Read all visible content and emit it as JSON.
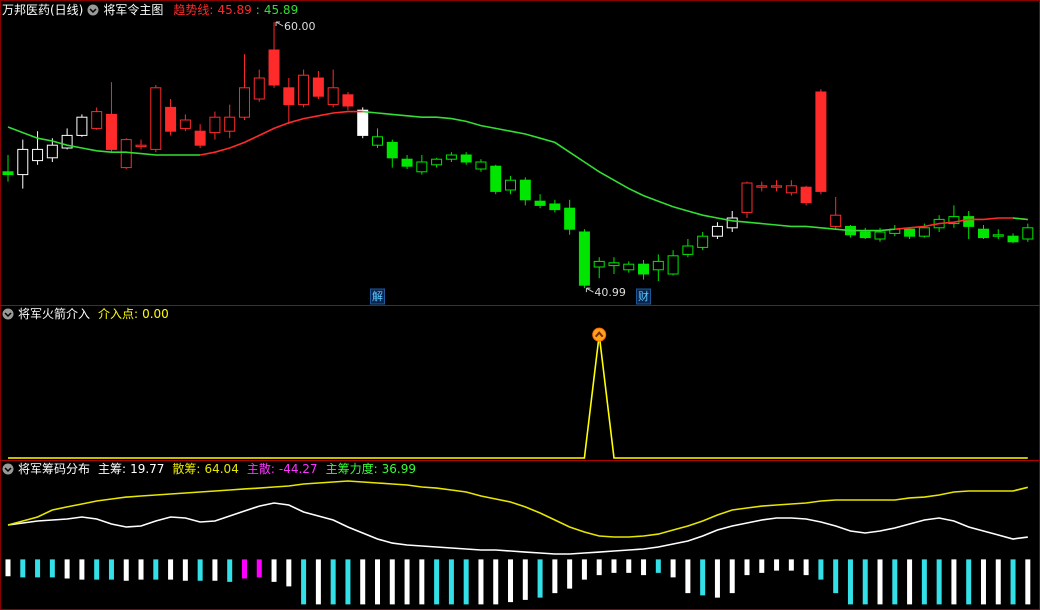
{
  "chart_data": [
    {
      "type": "candlestick",
      "title": "万邦医药(日线)",
      "subtitle": "将军令主图",
      "open": [
        49.3,
        49.1,
        50.1,
        50.3,
        51.0,
        51.9,
        52.4,
        53.4,
        49.6,
        51.1,
        50.9,
        53.9,
        52.4,
        52.2,
        52.1,
        52.2,
        53.2,
        54.5,
        58.0,
        55.3,
        54.1,
        56.0,
        54.1,
        54.8,
        53.7,
        51.2,
        51.4,
        50.2,
        49.3,
        49.8,
        50.2,
        50.5,
        49.5,
        49.7,
        48.0,
        48.7,
        47.2,
        47.0,
        46.7,
        45.0,
        42.5,
        42.6,
        42.3,
        42.7,
        42.3,
        42.0,
        43.4,
        43.9,
        44.7,
        45.3,
        46.4,
        48.2,
        48.2,
        47.8,
        48.2,
        55.0,
        45.4,
        45.4,
        45.0,
        44.5,
        44.9,
        45.2,
        44.7,
        45.3,
        45.6,
        46.1,
        45.2,
        44.7,
        44.7,
        44.5
      ],
      "high": [
        50.5,
        51.6,
        52.2,
        51.7,
        52.4,
        53.4,
        53.9,
        55.7,
        51.7,
        51.6,
        55.5,
        54.5,
        53.4,
        52.7,
        53.6,
        54.1,
        57.7,
        56.6,
        60.0,
        56.0,
        56.6,
        56.5,
        56.6,
        55.0,
        53.9,
        52.4,
        51.6,
        50.5,
        50.5,
        50.3,
        50.7,
        50.7,
        50.2,
        49.8,
        49.0,
        48.9,
        47.7,
        47.3,
        47.3,
        45.2,
        43.2,
        43.2,
        42.9,
        43.0,
        43.4,
        43.7,
        44.5,
        45.0,
        45.7,
        46.5,
        48.6,
        48.6,
        48.7,
        48.7,
        48.3,
        55.2,
        47.5,
        45.5,
        45.3,
        45.3,
        45.5,
        45.3,
        45.6,
        46.2,
        46.9,
        46.5,
        45.5,
        45.2,
        44.9,
        45.6
      ],
      "low": [
        48.6,
        48.1,
        49.8,
        50.0,
        50.9,
        51.8,
        52.3,
        50.7,
        49.5,
        50.9,
        50.7,
        51.9,
        52.2,
        51.0,
        51.6,
        51.7,
        53.0,
        54.3,
        55.3,
        52.7,
        53.9,
        54.5,
        53.9,
        53.7,
        51.7,
        51.0,
        49.6,
        49.5,
        49.1,
        49.6,
        50.0,
        49.8,
        49.3,
        47.7,
        47.7,
        46.9,
        46.7,
        46.4,
        44.8,
        40.99,
        41.7,
        42.0,
        42.1,
        41.6,
        41.5,
        41.9,
        43.2,
        43.7,
        44.5,
        45.0,
        46.0,
        47.9,
        47.9,
        47.6,
        46.9,
        47.7,
        45.2,
        44.6,
        44.5,
        44.3,
        44.7,
        44.5,
        44.6,
        45.0,
        45.3,
        44.5,
        44.5,
        44.5,
        44.2,
        44.3
      ],
      "close": [
        49.1,
        50.9,
        50.9,
        51.2,
        51.9,
        53.2,
        53.6,
        50.9,
        51.6,
        51.2,
        55.3,
        52.2,
        53.0,
        51.2,
        53.2,
        53.2,
        55.3,
        56.0,
        55.5,
        54.1,
        56.2,
        54.7,
        55.3,
        54.0,
        51.9,
        51.8,
        50.3,
        49.7,
        50.0,
        50.2,
        50.5,
        50.0,
        50.0,
        47.9,
        48.7,
        47.3,
        46.9,
        46.6,
        45.2,
        41.2,
        42.9,
        42.8,
        42.7,
        42.0,
        42.9,
        43.3,
        44.0,
        44.7,
        45.4,
        46.0,
        48.5,
        48.3,
        48.3,
        48.3,
        47.1,
        47.9,
        46.2,
        44.8,
        44.6,
        45.0,
        45.2,
        44.7,
        45.3,
        45.9,
        46.1,
        45.4,
        44.6,
        44.8,
        44.3,
        45.3
      ],
      "colors": [
        "#00e600",
        "#ffffff",
        "#ffffff",
        "#ffffff",
        "#ffffff",
        "#ffffff",
        "#ff2a2a",
        "#ff2a2a",
        "#ff2a2a",
        "#ff2a2a",
        "#ff2a2a",
        "#ff2a2a",
        "#ff2a2a",
        "#ff2a2a",
        "#ff2a2a",
        "#ff2a2a",
        "#ff2a2a",
        "#ff2a2a",
        "#ff2a2a",
        "#ff2a2a",
        "#ff2a2a",
        "#ff2a2a",
        "#ff2a2a",
        "#ff2a2a",
        "#ffffff",
        "#00e600",
        "#00e600",
        "#00e600",
        "#00e600",
        "#00e600",
        "#00e600",
        "#00e600",
        "#00e600",
        "#00e600",
        "#00e600",
        "#00e600",
        "#00e600",
        "#00e600",
        "#00e600",
        "#00e600",
        "#00e600",
        "#00e600",
        "#00e600",
        "#00e600",
        "#00e600",
        "#00e600",
        "#00e600",
        "#00e600",
        "#ffffff",
        "#ffffff",
        "#ff2a2a",
        "#ff2a2a",
        "#ff2a2a",
        "#ff2a2a",
        "#ff2a2a",
        "#ff2a2a",
        "#ff2a2a",
        "#00e600",
        "#00e600",
        "#00e600",
        "#00e600",
        "#00e600",
        "#00e600",
        "#00e600",
        "#00e600",
        "#00e600",
        "#00e600",
        "#00e600",
        "#00e600",
        "#00e600"
      ],
      "ylim": [
        40,
        61
      ],
      "series": [
        {
          "name": "趋势线:",
          "color": "#ff2a2a",
          "values": [
            null,
            null,
            null,
            null,
            null,
            null,
            null,
            null,
            null,
            null,
            null,
            null,
            null,
            50.5,
            50.7,
            51.0,
            51.4,
            51.9,
            52.4,
            52.8,
            53.1,
            53.3,
            53.5,
            53.6,
            53.6,
            null,
            null,
            null,
            null,
            null,
            null,
            null,
            null,
            null,
            null,
            null,
            null,
            null,
            null,
            null,
            null,
            null,
            null,
            null,
            null,
            null,
            null,
            null,
            null,
            null,
            null,
            null,
            null,
            null,
            null,
            null,
            null,
            null,
            null,
            null,
            45.2,
            45.3,
            45.4,
            45.6,
            45.7,
            45.9,
            45.9,
            46.0,
            46.0,
            45.89
          ]
        },
        {
          "name": ":",
          "color": "#33dd33",
          "values": [
            52.5,
            52.1,
            51.7,
            51.5,
            51.2,
            51.0,
            50.8,
            50.7,
            50.7,
            50.6,
            50.5,
            50.5,
            50.5,
            50.5,
            null,
            null,
            null,
            null,
            null,
            null,
            null,
            null,
            null,
            null,
            53.6,
            53.5,
            53.4,
            53.3,
            53.2,
            53.2,
            53.1,
            52.9,
            52.6,
            52.4,
            52.2,
            52.0,
            51.7,
            51.4,
            50.7,
            50.0,
            49.3,
            48.7,
            48.1,
            47.6,
            47.2,
            46.8,
            46.5,
            46.2,
            46.0,
            45.8,
            45.7,
            45.6,
            45.5,
            45.4,
            45.4,
            45.3,
            45.2,
            45.1,
            45.1,
            45.1,
            45.2,
            null,
            null,
            null,
            null,
            null,
            null,
            null,
            46.0,
            45.89
          ]
        }
      ],
      "signals": [
        "解",
        "财"
      ]
    },
    {
      "type": "line",
      "title": "将军火箭介入",
      "ylim": [
        0,
        1.2
      ],
      "series": [
        {
          "name": "介入点:",
          "color": "#ffff00",
          "values": [
            0,
            0,
            0,
            0,
            0,
            0,
            0,
            0,
            0,
            0,
            0,
            0,
            0,
            0,
            0,
            0,
            0,
            0,
            0,
            0,
            0,
            0,
            0,
            0,
            0,
            0,
            0,
            0,
            0,
            0,
            0,
            0,
            0,
            0,
            0,
            0,
            0,
            0,
            0,
            0,
            1,
            0,
            0,
            0,
            0,
            0,
            0,
            0,
            0,
            0,
            0,
            0,
            0,
            0,
            0,
            0,
            0,
            0,
            0,
            0,
            0,
            0,
            0,
            0,
            0,
            0,
            0,
            0,
            0,
            0
          ]
        }
      ]
    },
    {
      "type": "line",
      "title": "将军筹码分布",
      "ylim": [
        -45,
        83
      ],
      "series": [
        {
          "name": "主筹:",
          "color": "#ffffff",
          "values": [
            30.6,
            32.3,
            34.1,
            35.0,
            35.9,
            37.7,
            35.9,
            31.4,
            28.8,
            29.7,
            34.1,
            37.7,
            36.8,
            33.2,
            34.1,
            38.6,
            43.0,
            47.4,
            50.1,
            48.3,
            42.1,
            38.6,
            35.0,
            28.8,
            23.4,
            18.1,
            14.5,
            12.8,
            11.9,
            11.0,
            10.1,
            9.2,
            8.3,
            8.3,
            7.4,
            6.5,
            5.7,
            4.8,
            4.8,
            5.7,
            6.5,
            7.4,
            8.3,
            9.2,
            11.0,
            13.7,
            16.3,
            20.8,
            26.1,
            29.7,
            32.3,
            35.0,
            36.8,
            36.8,
            35.9,
            33.2,
            29.7,
            25.2,
            23.4,
            25.2,
            27.9,
            31.4,
            35.0,
            36.8,
            34.1,
            28.8,
            25.2,
            21.7,
            18.1,
            19.77
          ]
        },
        {
          "name": "散筹:",
          "color": "#e6e600",
          "values": [
            30.6,
            34.1,
            37.7,
            43.9,
            46.6,
            49.2,
            51.9,
            53.7,
            55.4,
            56.3,
            57.2,
            58.1,
            59.0,
            59.9,
            60.8,
            61.7,
            62.6,
            63.4,
            64.3,
            65.2,
            67.0,
            67.9,
            68.8,
            69.7,
            68.8,
            67.9,
            67.0,
            66.1,
            64.3,
            63.4,
            61.7,
            59.9,
            56.3,
            53.7,
            51.0,
            46.6,
            41.2,
            35.0,
            28.8,
            24.3,
            20.8,
            19.9,
            19.9,
            20.8,
            22.5,
            26.1,
            29.7,
            34.1,
            39.4,
            43.9,
            45.7,
            47.4,
            48.3,
            49.2,
            50.1,
            51.9,
            52.8,
            52.8,
            52.8,
            52.8,
            52.8,
            54.6,
            55.4,
            57.2,
            59.9,
            60.8,
            60.8,
            60.8,
            60.8,
            64.04
          ]
        }
      ],
      "readouts": [
        {
          "name": "主散:",
          "value": -44.27,
          "color": "#ff33ff"
        },
        {
          "name": "主筹力度:",
          "value": 36.99,
          "color": "#33ff33"
        }
      ],
      "bars": {
        "values": [
          -15,
          -16,
          -16,
          -16,
          -17,
          -18,
          -18,
          -18,
          -19,
          -18,
          -18,
          -18,
          -19,
          -19,
          -19,
          -20,
          -17,
          -16,
          -20,
          -24,
          -40,
          -40,
          -40,
          -40,
          -40,
          -40,
          -40,
          -40,
          -40,
          -40,
          -40,
          -40,
          -40,
          -40,
          -38,
          -36,
          -34,
          -30,
          -26,
          -18,
          -14,
          -12,
          -12,
          -14,
          -12,
          -16,
          -30,
          -32,
          -34,
          -30,
          -14,
          -12,
          -10,
          -10,
          -14,
          -18,
          -30,
          -40,
          -40,
          -40,
          -40,
          -40,
          -40,
          -40,
          -40,
          -40,
          -40,
          -40,
          -40,
          -40
        ],
        "colors": [
          "#ffffff",
          "#33e0e8",
          "#33e0e8",
          "#33e0e8",
          "#ffffff",
          "#ffffff",
          "#33e0e8",
          "#33e0e8",
          "#ffffff",
          "#ffffff",
          "#33e0e8",
          "#ffffff",
          "#ffffff",
          "#33e0e8",
          "#ffffff",
          "#33e0e8",
          "#ff00ff",
          "#ff00ff",
          "#ffffff",
          "#ffffff",
          "#33e0e8",
          "#ffffff",
          "#33e0e8",
          "#33e0e8",
          "#ffffff",
          "#ffffff",
          "#ffffff",
          "#ffffff",
          "#ffffff",
          "#33e0e8",
          "#33e0e8",
          "#33e0e8",
          "#ffffff",
          "#ffffff",
          "#ffffff",
          "#ffffff",
          "#33e0e8",
          "#ffffff",
          "#ffffff",
          "#ffffff",
          "#ffffff",
          "#ffffff",
          "#ffffff",
          "#ffffff",
          "#33e0e8",
          "#ffffff",
          "#ffffff",
          "#33e0e8",
          "#ffffff",
          "#ffffff",
          "#ffffff",
          "#ffffff",
          "#ffffff",
          "#ffffff",
          "#ffffff",
          "#33e0e8",
          "#33e0e8",
          "#33e0e8",
          "#33e0e8",
          "#ffffff",
          "#33e0e8",
          "#ffffff",
          "#33e0e8",
          "#33e0e8",
          "#ffffff",
          "#33e0e8",
          "#ffffff",
          "#ffffff",
          "#33e0e8",
          "#ffffff"
        ]
      }
    }
  ]
}
